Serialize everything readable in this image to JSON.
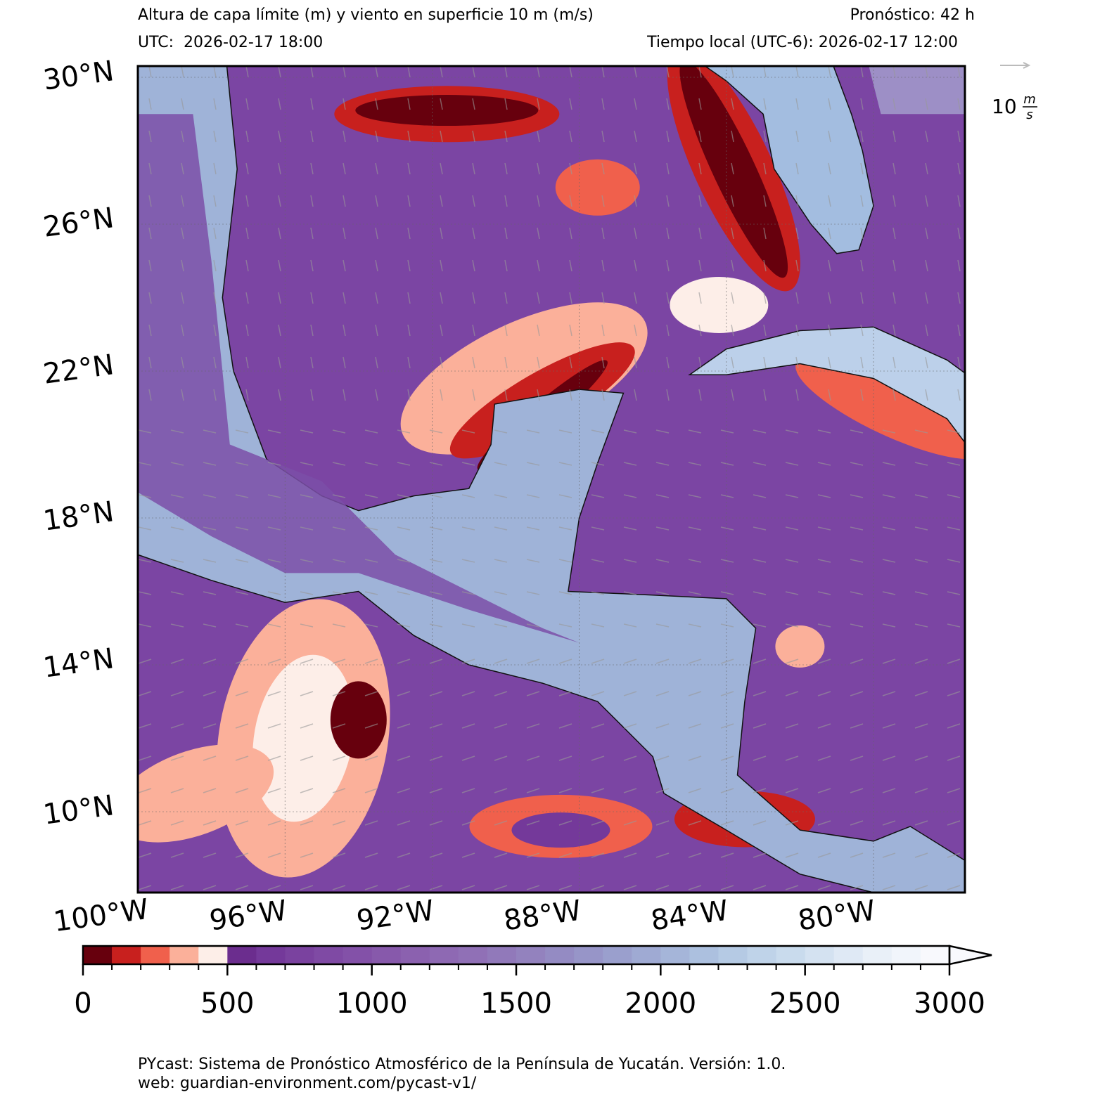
{
  "header": {
    "title": "Altura de capa límite (m) y viento en superficie 10 m (m/s)",
    "forecast": "Pronóstico: 42 h",
    "utc": "UTC:  2026-02-17 18:00",
    "local_time": "Tiempo local (UTC-6): 2026-02-17 12:00"
  },
  "map": {
    "lat_ticks": [
      {
        "value": 30,
        "label": "30°N"
      },
      {
        "value": 26,
        "label": "26°N"
      },
      {
        "value": 22,
        "label": "22°N"
      },
      {
        "value": 18,
        "label": "18°N"
      },
      {
        "value": 14,
        "label": "14°N"
      },
      {
        "value": 10,
        "label": "10°N"
      }
    ],
    "lon_ticks": [
      {
        "value": -100,
        "label": "100°W"
      },
      {
        "value": -96,
        "label": "96°W"
      },
      {
        "value": -92,
        "label": "92°W"
      },
      {
        "value": -88,
        "label": "88°W"
      },
      {
        "value": -84,
        "label": "84°W"
      },
      {
        "value": -80,
        "label": "80°W"
      }
    ]
  },
  "wind_reference": {
    "speed": "10",
    "unit_top": "m",
    "unit_bottom": "s"
  },
  "colorbar": {
    "ticks": [
      0,
      500,
      1000,
      1500,
      2000,
      2500,
      3000
    ],
    "colors": [
      "#67000d",
      "#c8201e",
      "#f0604c",
      "#fbb09a",
      "#fdeee8",
      "#6b2d8e",
      "#74399a",
      "#7a429f",
      "#7f4aa4",
      "#8351a8",
      "#8759ab",
      "#8b61af",
      "#8e69b3",
      "#9070b6",
      "#9179ba",
      "#9382be",
      "#948bc3",
      "#9795c8",
      "#9a9fcd",
      "#9faad3",
      "#a5b5d9",
      "#acc0df",
      "#b5cae4",
      "#bfd3e9",
      "#c9dbed",
      "#d4e2f1",
      "#dfe9f5",
      "#e9f0f8",
      "#f1f5fb",
      "#f8f9fd"
    ],
    "extend": "max"
  },
  "footer": {
    "line1": "PYcast: Sistema de Pronóstico Atmosférico de la Península de Yucatán. Versión: 1.0.",
    "line2": "web: guardian-environment.com/pycast-v1/"
  }
}
